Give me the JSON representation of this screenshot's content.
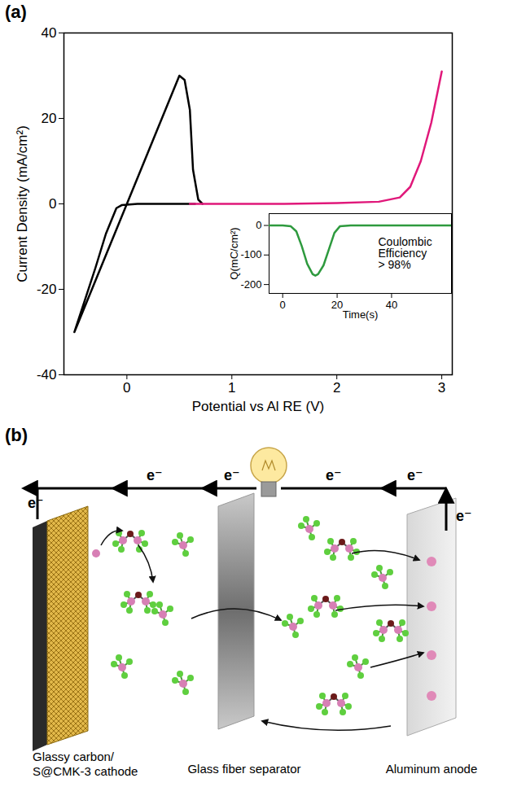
{
  "chart_data": [
    {
      "type": "line",
      "xlabel": "Potential vs Al RE (V)",
      "ylabel": "Current Density (mA/cm²)",
      "xlim": [
        -0.6,
        3.1
      ],
      "ylim": [
        -40,
        40
      ],
      "xticks": [
        0,
        1,
        2,
        3
      ],
      "yticks": [
        -40,
        -20,
        0,
        20,
        40
      ],
      "grid": false,
      "series": [
        {
          "color": "#000000",
          "x": [
            0.65,
            0.4,
            0.1,
            -0.05,
            -0.1,
            -0.2,
            -0.3,
            -0.4,
            -0.5,
            -0.45,
            -0.3,
            -0.1,
            0.0,
            0.2,
            0.4,
            0.5,
            0.55,
            0.6,
            0.63,
            0.68,
            0.72
          ],
          "values": [
            0,
            0,
            0,
            -0.3,
            -1,
            -7,
            -15,
            -22.5,
            -30,
            -27,
            -18,
            -6,
            0,
            12,
            24,
            30,
            29,
            22,
            8,
            1,
            0
          ]
        },
        {
          "color": "#e0187a",
          "x": [
            0.6,
            1.0,
            1.5,
            2.0,
            2.4,
            2.6,
            2.7,
            2.8,
            2.9,
            3.0
          ],
          "values": [
            0,
            0,
            0,
            0.2,
            0.5,
            1.5,
            4,
            10,
            19,
            31
          ]
        }
      ]
    },
    {
      "type": "line",
      "xlabel": "Time(s)",
      "ylabel": "Q(mC/cm²)",
      "xlim": [
        -5,
        62
      ],
      "ylim": [
        -230,
        40
      ],
      "xticks": [
        0,
        20,
        40
      ],
      "yticks": [
        0,
        -100,
        -200
      ],
      "grid": false,
      "annotation": [
        "Coulombic",
        "Efficiency",
        "> 98%"
      ],
      "series": [
        {
          "color": "#2e9a3e",
          "x": [
            -5,
            0,
            3,
            5,
            7,
            9,
            11,
            12,
            13,
            15,
            17,
            19,
            21,
            25,
            35,
            50,
            62
          ],
          "values": [
            0,
            0,
            -3,
            -20,
            -70,
            -130,
            -165,
            -170,
            -165,
            -135,
            -80,
            -25,
            -3,
            0,
            0,
            0,
            0
          ]
        }
      ]
    }
  ],
  "panel_labels": [
    "(a)",
    "(b)"
  ],
  "diagram": {
    "electron_labels": [
      "e⁻",
      "e⁻",
      "e⁻",
      "e⁻",
      "e⁻",
      "e⁻"
    ],
    "components": [
      [
        "Glassy carbon/",
        "S@CMK-3 cathode"
      ],
      [
        "Glass fiber separator"
      ],
      [
        "Aluminum anode"
      ]
    ]
  }
}
